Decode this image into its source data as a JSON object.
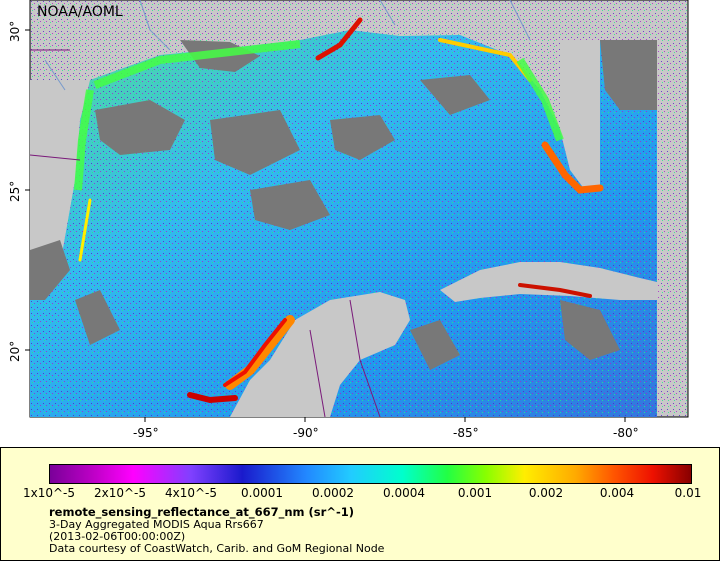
{
  "map": {
    "source": "NOAA/AOML",
    "x_ticks": [
      "-95°",
      "-90°",
      "-85°",
      "-80°"
    ],
    "y_ticks": [
      "30°",
      "25°",
      "20°"
    ],
    "colors": {
      "land": "#c8c8c8",
      "no_data": "#787878",
      "ocean_mid": "#33bbee",
      "coast_high": "#ee2200"
    }
  },
  "legend": {
    "colorbar_ticks": [
      "1x10^-5",
      "2x10^-5",
      "4x10^-5",
      "0.0001",
      "0.0002",
      "0.0004",
      "0.001",
      "0.002",
      "0.004",
      "0.01"
    ],
    "variable": "remote_sensing_reflectance_at_667_nm (sr^-1)",
    "description": "3-Day Aggregated MODIS Aqua Rrs667",
    "time": "(2013-02-06T00:00:00Z)",
    "credit": "Data courtesy of CoastWatch, Carib. and GoM Regional Node"
  }
}
